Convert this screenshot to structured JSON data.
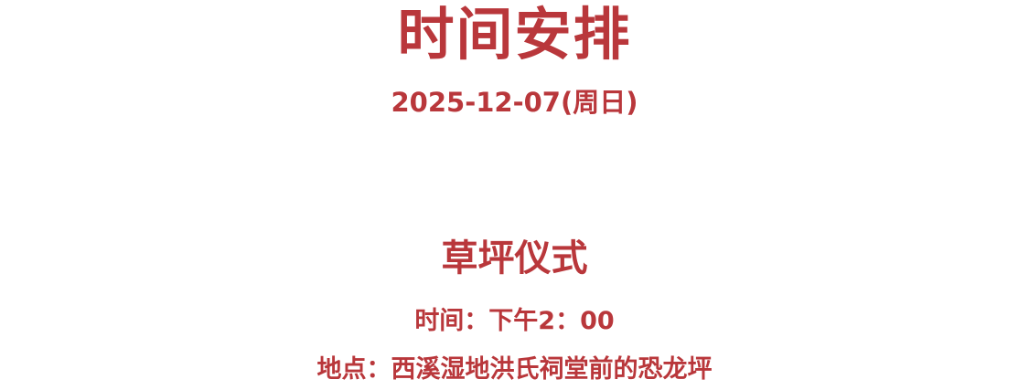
{
  "colors": {
    "accent": "#b9373b",
    "background": "#ffffff"
  },
  "page": {
    "title": "时间安排",
    "date": "2025-12-07(周日)"
  },
  "event": {
    "name": "草坪仪式",
    "time": "时间：下午2：00",
    "location": "地点：西溪湿地洪氏祠堂前的恐龙坪"
  }
}
